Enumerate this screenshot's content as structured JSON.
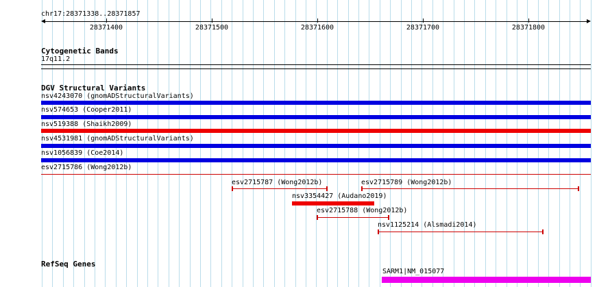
{
  "region": {
    "label": "chr17:28371338..28371857"
  },
  "ruler": {
    "ticks": [
      "28371400",
      "28371500",
      "28371600",
      "28371700",
      "28371800"
    ]
  },
  "cytoband_track": {
    "title": "Cytogenetic Bands",
    "band": "17q11.2"
  },
  "dgv_track": {
    "title": "DGV Structural Variants",
    "full_width_features": [
      {
        "label": "nsv4243070 (gnomADStructuralVariants)",
        "color": "#0000e0"
      },
      {
        "label": "nsv574653 (Cooper2011)",
        "color": "#0000e0"
      },
      {
        "label": "nsv519388 (Shaikh2009)",
        "color": "#ee0000"
      },
      {
        "label": "nsv4531981 (gnomADStructuralVariants)",
        "color": "#0000e0"
      },
      {
        "label": "nsv1056839 (Coe2014)",
        "color": "#0000e0"
      },
      {
        "label": "esv2715786 (Wong2012b)",
        "color": "#cc0000"
      }
    ],
    "partial_features": [
      {
        "label": "esv2715787 (Wong2012b)",
        "color": "#cc0000"
      },
      {
        "label": "esv2715789 (Wong2012b)",
        "color": "#cc0000"
      },
      {
        "label": "nsv3354427 (Audano2019)",
        "color": "#ee0000"
      },
      {
        "label": "esv2715788 (Wong2012b)",
        "color": "#cc0000"
      },
      {
        "label": "nsv1125214 (Alsmadi2014)",
        "color": "#cc0000"
      }
    ]
  },
  "refseq_track": {
    "title": "RefSeq Genes",
    "gene": {
      "label": "SARM1|NM_015077",
      "color": "#ee00ee"
    }
  }
}
